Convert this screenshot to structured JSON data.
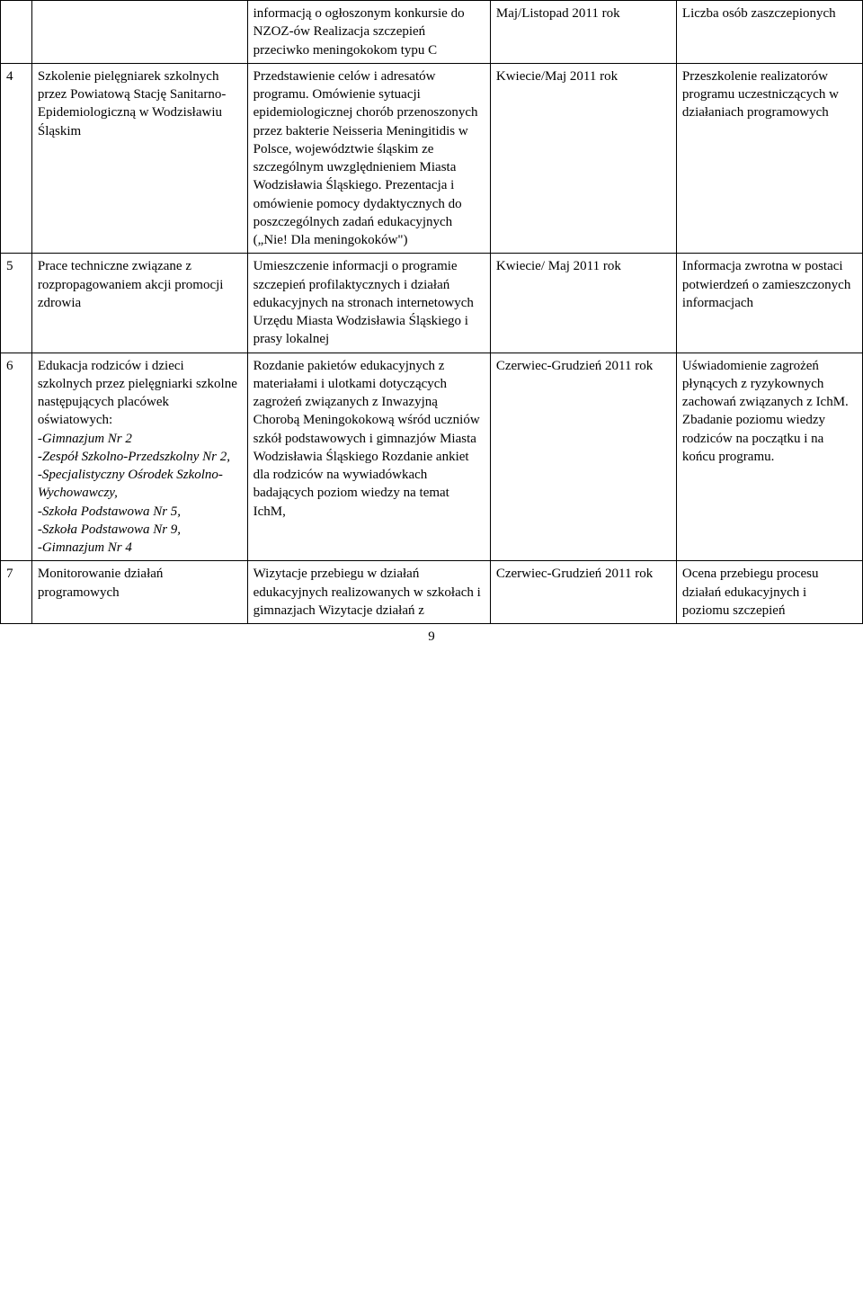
{
  "page_number": "9",
  "rows": [
    {
      "num": "",
      "task": "",
      "desc": "informacją o ogłoszonym konkursie do NZOZ-ów Realizacja szczepień przeciwko meningokokom typu C",
      "date": "Maj/Listopad 2011 rok",
      "result": "Liczba osób zaszczepionych"
    },
    {
      "num": "4",
      "task": "Szkolenie pielęgniarek szkolnych  przez Powiatową Stację Sanitarno-Epidemiologiczną w Wodzisławiu Śląskim",
      "desc": "Przedstawienie celów i adresatów programu. Omówienie sytuacji epidemiologicznej chorób przenoszonych przez bakterie Neisseria Meningitidis w Polsce, województwie śląskim ze szczególnym uwzględnieniem Miasta Wodzisławia Śląskiego. Prezentacja i omówienie pomocy dydaktycznych do poszczególnych zadań edukacyjnych („Nie! Dla meningokoków\")",
      "date": "Kwiecie/Maj 2011 rok",
      "result": "Przeszkolenie realizatorów programu uczestniczących w działaniach programowych"
    },
    {
      "num": "5",
      "task": "Prace techniczne związane z rozpropagowaniem akcji promocji zdrowia",
      "desc": "Umieszczenie informacji o programie szczepień profilaktycznych i działań edukacyjnych na stronach internetowych Urzędu Miasta Wodzisławia Śląskiego i prasy lokalnej",
      "date": "Kwiecie/ Maj 2011 rok",
      "result": "Informacja zwrotna w postaci potwierdzeń o zamieszczonych informacjach"
    },
    {
      "num": "6",
      "row6_task_intro": "Edukacja rodziców i dzieci szkolnych przez pielęgniarki szkolne następujących placówek oświatowych:",
      "row6_task_items": [
        "-Gimnazjum Nr 2",
        "-Zespół Szkolno-Przedszkolny Nr 2,",
        "-Specjalistyczny Ośrodek Szkolno-Wychowawczy,",
        "-Szkoła Podstawowa Nr 5,",
        "-Szkoła Podstawowa Nr 9,",
        "-Gimnazjum Nr 4"
      ],
      "desc": "Rozdanie pakietów edukacyjnych z materiałami i ulotkami dotyczących zagrożeń związanych z Inwazyjną Chorobą Meningokokową wśród uczniów szkół podstawowych i gimnazjów Miasta Wodzisławia Śląskiego Rozdanie ankiet dla rodziców na wywiadówkach badających poziom wiedzy na temat IchM,",
      "date": "Czerwiec-Grudzień 2011 rok",
      "result": "Uświadomienie zagrożeń płynących z ryzykownych zachowań związanych z IchM. Zbadanie poziomu wiedzy rodziców na początku i na końcu programu."
    },
    {
      "num": "7",
      "task": "Monitorowanie działań programowych",
      "desc": "Wizytacje przebiegu w działań edukacyjnych realizowanych w szkołach i gimnazjach Wizytacje działań z",
      "date": "Czerwiec-Grudzień 2011 rok",
      "result": "Ocena przebiegu procesu działań edukacyjnych i poziomu szczepień"
    }
  ]
}
